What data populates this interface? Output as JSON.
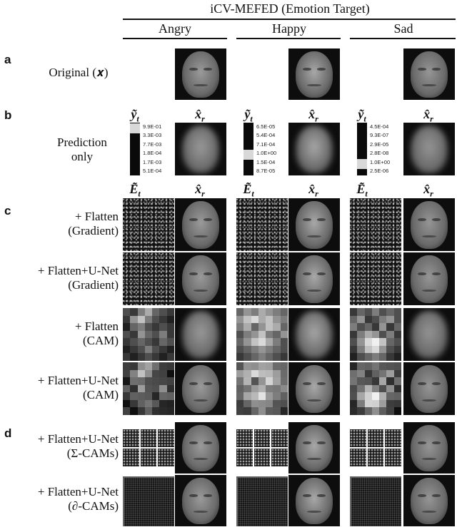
{
  "figure": {
    "title": "iCV-MEFED (Emotion Target)",
    "columns": [
      "Angry",
      "Happy",
      "Sad"
    ],
    "sections": {
      "a": {
        "letter": "a",
        "label": "Original (𝒙)"
      },
      "b": {
        "letter": "b",
        "label_line1": "Prediction",
        "label_line2": "only",
        "sym_y": "ỹ",
        "sym_y_sub": "t",
        "sym_x": "x̂",
        "sym_x_sub": "r"
      },
      "c": {
        "letter": "c",
        "sym_e": "Ẽ",
        "sym_e_sub": "t",
        "sym_x": "x̂",
        "sym_x_sub": "r",
        "rows": [
          {
            "line1": "+ Flatten",
            "line2": "(Gradient)"
          },
          {
            "line1": "+ Flatten+U-Net",
            "line2": "(Gradient)"
          },
          {
            "line1": "+ Flatten",
            "line2": "(CAM)"
          },
          {
            "line1": "+ Flatten+U-Net",
            "line2": "(CAM)"
          }
        ]
      },
      "d": {
        "letter": "d",
        "rows": [
          {
            "line1": "+ Flatten+U-Net",
            "line2": "(Σ-CAMs)"
          },
          {
            "line1": "+ Flatten+U-Net",
            "line2": "(∂-CAMs)"
          }
        ]
      }
    },
    "predictions": [
      {
        "values": [
          "9.9E-01",
          "3.3E-03",
          "7.7E-03",
          "1.8E-04",
          "1.7E-03",
          "5.1E-04"
        ],
        "highlight": 0
      },
      {
        "values": [
          "6.5E-05",
          "5.4E-04",
          "7.1E-04",
          "1.0E+00",
          "1.5E-04",
          "8.7E-05"
        ],
        "highlight": 3
      },
      {
        "values": [
          "4.5E-04",
          "9.3E-07",
          "2.9E-05",
          "2.8E-08",
          "1.0E+00",
          "2.5E-06"
        ],
        "highlight": 4
      }
    ],
    "cam_patterns": [
      [
        [
          0.3,
          0.2,
          0.5,
          0.7,
          0.4,
          0.3,
          0.2
        ],
        [
          0.2,
          0.6,
          0.8,
          0.5,
          0.3,
          0.2,
          0.1
        ],
        [
          0.1,
          0.4,
          0.5,
          0.3,
          0.2,
          0.3,
          0.2
        ],
        [
          0.3,
          0.2,
          0.6,
          0.4,
          0.3,
          0.5,
          0.2
        ],
        [
          0.2,
          0.3,
          0.4,
          0.3,
          0.2,
          0.4,
          0.3
        ],
        [
          0.1,
          0.2,
          0.3,
          0.5,
          0.3,
          0.2,
          0.1
        ],
        [
          0.2,
          0.1,
          0.2,
          0.3,
          0.2,
          0.1,
          0.2
        ]
      ],
      [
        [
          0.4,
          0.6,
          0.5,
          0.7,
          0.6,
          0.5,
          0.4
        ],
        [
          0.6,
          0.8,
          0.9,
          0.7,
          0.8,
          0.6,
          0.5
        ],
        [
          0.5,
          0.7,
          0.4,
          0.6,
          0.8,
          0.7,
          0.4
        ],
        [
          0.3,
          0.5,
          0.6,
          0.8,
          0.5,
          0.4,
          0.6
        ],
        [
          0.4,
          0.6,
          0.8,
          0.9,
          0.7,
          0.5,
          0.3
        ],
        [
          0.3,
          0.4,
          0.5,
          0.6,
          0.5,
          0.4,
          0.3
        ],
        [
          0.2,
          0.3,
          0.4,
          0.5,
          0.4,
          0.3,
          0.2
        ]
      ],
      [
        [
          0.2,
          0.4,
          0.3,
          0.5,
          0.3,
          0.4,
          0.3
        ],
        [
          0.4,
          0.6,
          0.2,
          0.3,
          0.5,
          0.6,
          0.3
        ],
        [
          0.5,
          0.3,
          0.4,
          0.2,
          0.6,
          0.2,
          0.4
        ],
        [
          0.2,
          0.5,
          0.7,
          0.6,
          0.3,
          0.5,
          0.2
        ],
        [
          0.3,
          0.6,
          0.9,
          1.0,
          0.8,
          0.4,
          0.3
        ],
        [
          0.2,
          0.5,
          0.8,
          0.9,
          0.6,
          0.3,
          0.2
        ],
        [
          0.1,
          0.3,
          0.4,
          0.5,
          0.4,
          0.2,
          0.1
        ]
      ]
    ]
  }
}
